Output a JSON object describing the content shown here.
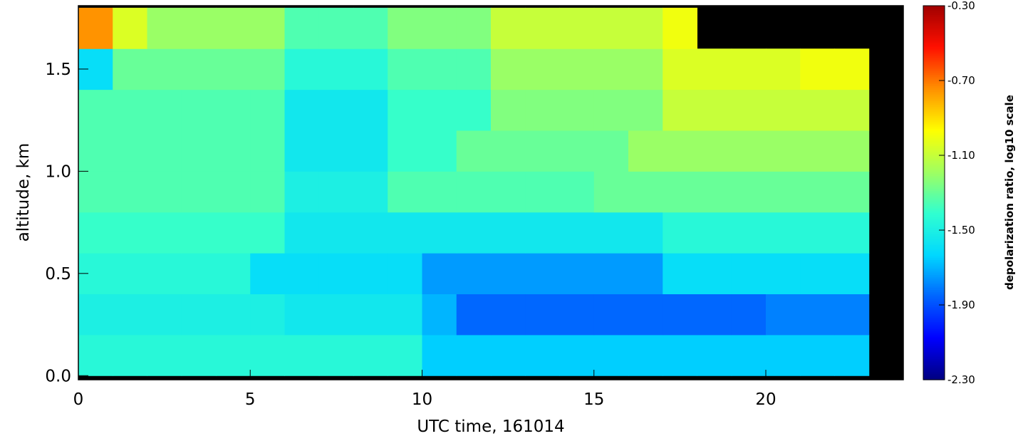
{
  "chart_data": {
    "type": "heatmap",
    "x_label": "UTC time, 161014",
    "y_label": "altitude, km",
    "colorbar_label": "depolarization ratio, log10 scale",
    "x_edges": [
      0,
      1,
      2,
      3,
      4,
      5,
      6,
      7,
      8,
      9,
      10,
      11,
      12,
      13,
      14,
      15,
      16,
      17,
      18,
      19,
      20,
      21,
      22,
      23,
      24
    ],
    "y_edges": [
      0,
      0.2,
      0.4,
      0.6,
      0.8,
      1.0,
      1.2,
      1.4,
      1.6,
      1.8
    ],
    "values": [
      [
        -1.45,
        -1.45,
        -1.45,
        -1.45,
        -1.45,
        -1.45,
        -1.45,
        -1.45,
        -1.45,
        -1.45,
        -1.65,
        -1.65,
        -1.65,
        -1.65,
        -1.65,
        -1.65,
        -1.65,
        -1.65,
        -1.65,
        -1.65,
        -1.65,
        -1.65,
        -1.65,
        null
      ],
      [
        -1.5,
        -1.5,
        -1.5,
        -1.5,
        -1.5,
        -1.5,
        -1.55,
        -1.55,
        -1.55,
        -1.55,
        -1.7,
        -1.85,
        -1.85,
        -1.85,
        -1.85,
        -1.85,
        -1.85,
        -1.85,
        -1.85,
        -1.85,
        -1.8,
        -1.8,
        -1.8,
        null
      ],
      [
        -1.45,
        -1.45,
        -1.45,
        -1.45,
        -1.45,
        -1.6,
        -1.6,
        -1.6,
        -1.6,
        -1.6,
        -1.75,
        -1.75,
        -1.75,
        -1.75,
        -1.75,
        -1.75,
        -1.75,
        -1.6,
        -1.6,
        -1.6,
        -1.6,
        -1.6,
        -1.6,
        null
      ],
      [
        -1.4,
        -1.4,
        -1.4,
        -1.4,
        -1.4,
        -1.4,
        -1.55,
        -1.55,
        -1.55,
        -1.55,
        -1.55,
        -1.55,
        -1.55,
        -1.55,
        -1.55,
        -1.55,
        -1.55,
        -1.45,
        -1.45,
        -1.45,
        -1.45,
        -1.45,
        -1.45,
        null
      ],
      [
        -1.35,
        -1.35,
        -1.35,
        -1.35,
        -1.35,
        -1.35,
        -1.5,
        -1.5,
        -1.5,
        -1.35,
        -1.35,
        -1.35,
        -1.35,
        -1.35,
        -1.35,
        -1.3,
        -1.3,
        -1.3,
        -1.3,
        -1.3,
        -1.3,
        -1.3,
        -1.3,
        null
      ],
      [
        -1.35,
        -1.35,
        -1.35,
        -1.35,
        -1.35,
        -1.35,
        -1.55,
        -1.55,
        -1.55,
        -1.4,
        -1.4,
        -1.3,
        -1.3,
        -1.3,
        -1.3,
        -1.3,
        -1.2,
        -1.2,
        -1.2,
        -1.2,
        -1.2,
        -1.2,
        -1.2,
        null
      ],
      [
        -1.35,
        -1.35,
        -1.35,
        -1.35,
        -1.35,
        -1.35,
        -1.55,
        -1.55,
        -1.55,
        -1.4,
        -1.4,
        -1.4,
        -1.25,
        -1.25,
        -1.25,
        -1.25,
        -1.25,
        -1.1,
        -1.1,
        -1.1,
        -1.1,
        -1.1,
        -1.1,
        null
      ],
      [
        -1.6,
        -1.3,
        -1.3,
        -1.3,
        -1.3,
        -1.3,
        -1.45,
        -1.45,
        -1.45,
        -1.35,
        -1.35,
        -1.35,
        -1.2,
        -1.2,
        -1.2,
        -1.2,
        -1.2,
        -1.05,
        -1.05,
        -1.05,
        -1.05,
        -1.0,
        -1.0,
        null
      ],
      [
        -0.75,
        -1.05,
        -1.2,
        -1.2,
        -1.2,
        -1.2,
        -1.35,
        -1.35,
        -1.35,
        -1.25,
        -1.25,
        -1.25,
        -1.1,
        -1.1,
        -1.1,
        -1.1,
        -1.1,
        -1.0,
        null,
        null,
        null,
        null,
        null,
        null
      ]
    ],
    "missing_color": "#000000",
    "colormap": [
      "#000080",
      "#0000ff",
      "#0064ff",
      "#00d8ff",
      "#30ffd0",
      "#a0ff60",
      "#ffff00",
      "#ff9000",
      "#ff1000",
      "#a00000"
    ],
    "clim": [
      -2.3,
      -0.3
    ],
    "xlim": [
      0,
      24
    ],
    "xticks": [
      0,
      5,
      10,
      15,
      20
    ],
    "ylim": [
      -0.02,
      1.81
    ],
    "yticks": [
      {
        "value": 0,
        "label": "0.0"
      },
      0.5,
      {
        "value": 1,
        "label": "1.0"
      },
      1.5
    ],
    "cticks": [
      {
        "value": -2.3,
        "label": "-2.30"
      },
      {
        "value": -1.9,
        "label": "-1.90"
      },
      {
        "value": -1.5,
        "label": "-1.50"
      },
      {
        "value": -1.1,
        "label": "-1.10"
      },
      {
        "value": -0.7,
        "label": "-0.70"
      },
      {
        "value": -0.3,
        "label": "-0.30"
      }
    ]
  }
}
